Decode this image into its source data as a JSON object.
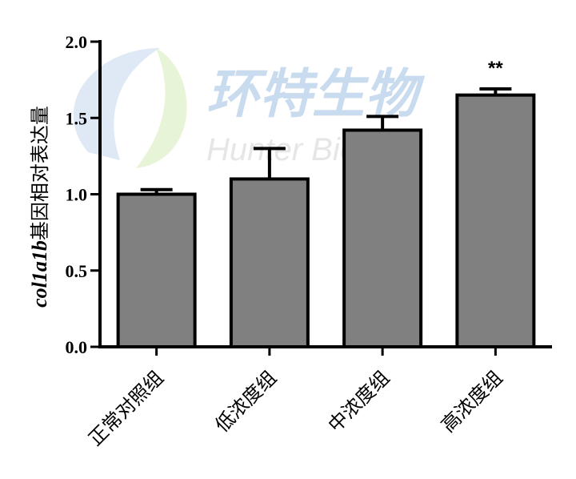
{
  "watermark": {
    "title_cn": "环特生物",
    "title_en": "Hunter Biotech",
    "colors": {
      "blue": "#c9dbee",
      "green": "#dff0c8",
      "gray": "#e6e6e6"
    }
  },
  "chart_data": {
    "type": "bar",
    "categories": [
      "正常对照组",
      "低浓度组",
      "中浓度组",
      "高浓度组"
    ],
    "values": [
      1.0,
      1.1,
      1.42,
      1.65
    ],
    "errors": [
      0.03,
      0.2,
      0.09,
      0.04
    ],
    "annotations": [
      "",
      "",
      "",
      "**"
    ],
    "ylabel_italic": "col1a1b",
    "ylabel_rest": "基因相对表达量",
    "ylim": [
      0,
      2.0
    ],
    "yticks": [
      "0.0",
      "0.5",
      "1.0",
      "1.5",
      "2.0"
    ],
    "bar_color": "#808080",
    "grid": false
  }
}
